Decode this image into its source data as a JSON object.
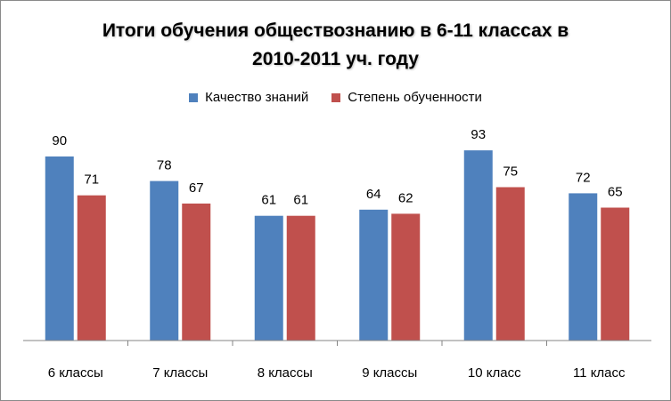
{
  "colors": {
    "series1": "#4F81BD",
    "series2": "#C0504D",
    "axis": "#858585"
  },
  "chart_data": {
    "type": "bar",
    "title_lines": [
      "Итоги обучения обществознанию в 6-11 классах в",
      "2010-2011 уч. году"
    ],
    "categories": [
      "6 классы",
      "7 классы",
      "8 классы",
      "9 классы",
      "10 класс",
      "11 класс"
    ],
    "series": [
      {
        "name": "Качество знаний",
        "values": [
          90,
          78,
          61,
          64,
          93,
          72
        ]
      },
      {
        "name": "Степень обученности",
        "values": [
          71,
          67,
          61,
          62,
          75,
          65
        ]
      }
    ],
    "ylim": [
      0,
      100
    ],
    "grid": false,
    "legend_position": "top-center"
  }
}
